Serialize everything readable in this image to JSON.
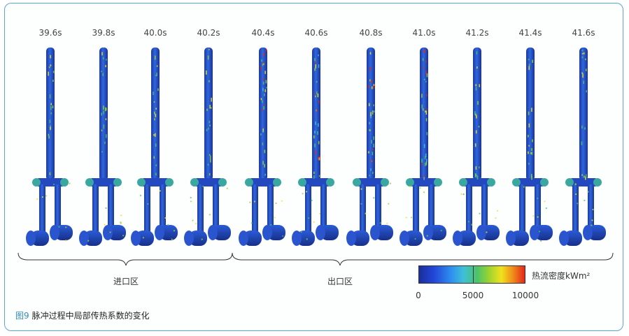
{
  "time_labels": [
    "39.6s",
    "39.8s",
    "40.0s",
    "40.2s",
    "40.4s",
    "40.6s",
    "40.8s",
    "41.0s",
    "41.2s",
    "41.4s",
    "41.6s"
  ],
  "zones": {
    "inlet": "进口区",
    "outlet": "出口区"
  },
  "colorbar": {
    "title": "热流密度kWm²",
    "ticks": [
      "0",
      "5000",
      "10000"
    ],
    "colors": [
      "#1a2f9e",
      "#2346d8",
      "#2e8df0",
      "#3fc0d8",
      "#4cc36a",
      "#9bd331",
      "#f2e11d",
      "#f08a1a",
      "#e3261b"
    ]
  },
  "caption": {
    "number": "图9",
    "text": "脉冲过程中局部传热系数的变化"
  }
}
